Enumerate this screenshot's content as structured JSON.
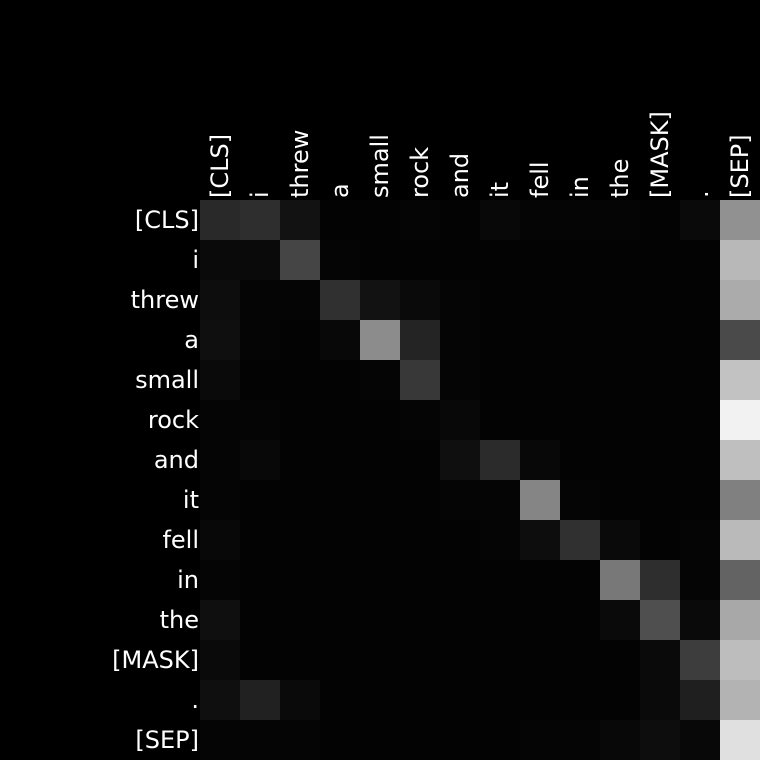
{
  "chart_data": {
    "type": "heatmap",
    "title": "",
    "xlabel": "",
    "ylabel": "",
    "colormap": "grayscale",
    "value_range": [
      0,
      1
    ],
    "background_color": "#000000",
    "label_color": "#ffffff",
    "x_tick_rotation": "vertical",
    "x_axis_position": "top",
    "legend": "none",
    "grid": false,
    "x_labels": [
      "[CLS]",
      "i",
      "threw",
      "a",
      "small",
      "rock",
      "and",
      "it",
      "fell",
      "in",
      "the",
      "[MASK]",
      ".",
      "[SEP]"
    ],
    "y_labels": [
      "[CLS]",
      "i",
      "threw",
      "a",
      "small",
      "rock",
      "and",
      "it",
      "fell",
      "in",
      "the",
      "[MASK]",
      ".",
      "[SEP]"
    ],
    "values": [
      [
        0.16,
        0.18,
        0.07,
        0.01,
        0.01,
        0.02,
        0.01,
        0.03,
        0.02,
        0.02,
        0.02,
        0.01,
        0.04,
        0.57
      ],
      [
        0.04,
        0.04,
        0.27,
        0.02,
        0.01,
        0.01,
        0.01,
        0.01,
        0.01,
        0.01,
        0.01,
        0.01,
        0.01,
        0.72
      ],
      [
        0.05,
        0.02,
        0.02,
        0.19,
        0.07,
        0.04,
        0.02,
        0.01,
        0.01,
        0.01,
        0.01,
        0.01,
        0.01,
        0.67
      ],
      [
        0.06,
        0.02,
        0.01,
        0.03,
        0.55,
        0.14,
        0.02,
        0.01,
        0.01,
        0.01,
        0.01,
        0.01,
        0.01,
        0.29
      ],
      [
        0.04,
        0.01,
        0.01,
        0.01,
        0.02,
        0.22,
        0.02,
        0.01,
        0.01,
        0.01,
        0.01,
        0.01,
        0.01,
        0.76
      ],
      [
        0.02,
        0.02,
        0.01,
        0.01,
        0.01,
        0.02,
        0.03,
        0.01,
        0.01,
        0.01,
        0.01,
        0.01,
        0.01,
        0.95
      ],
      [
        0.02,
        0.03,
        0.01,
        0.01,
        0.01,
        0.01,
        0.06,
        0.17,
        0.03,
        0.01,
        0.01,
        0.01,
        0.01,
        0.75
      ],
      [
        0.02,
        0.01,
        0.01,
        0.01,
        0.01,
        0.01,
        0.02,
        0.02,
        0.52,
        0.02,
        0.01,
        0.01,
        0.01,
        0.5
      ],
      [
        0.03,
        0.01,
        0.01,
        0.01,
        0.01,
        0.01,
        0.01,
        0.02,
        0.05,
        0.19,
        0.04,
        0.01,
        0.02,
        0.73
      ],
      [
        0.02,
        0.01,
        0.01,
        0.01,
        0.01,
        0.01,
        0.01,
        0.01,
        0.01,
        0.01,
        0.47,
        0.18,
        0.02,
        0.39
      ],
      [
        0.06,
        0.01,
        0.01,
        0.01,
        0.01,
        0.01,
        0.01,
        0.01,
        0.01,
        0.01,
        0.04,
        0.31,
        0.04,
        0.66
      ],
      [
        0.04,
        0.01,
        0.01,
        0.01,
        0.01,
        0.01,
        0.01,
        0.01,
        0.01,
        0.01,
        0.01,
        0.04,
        0.24,
        0.74
      ],
      [
        0.06,
        0.13,
        0.04,
        0.01,
        0.01,
        0.01,
        0.01,
        0.01,
        0.01,
        0.01,
        0.01,
        0.04,
        0.12,
        0.7
      ],
      [
        0.02,
        0.02,
        0.02,
        0.01,
        0.01,
        0.01,
        0.01,
        0.01,
        0.02,
        0.02,
        0.03,
        0.05,
        0.03,
        0.88
      ]
    ]
  }
}
